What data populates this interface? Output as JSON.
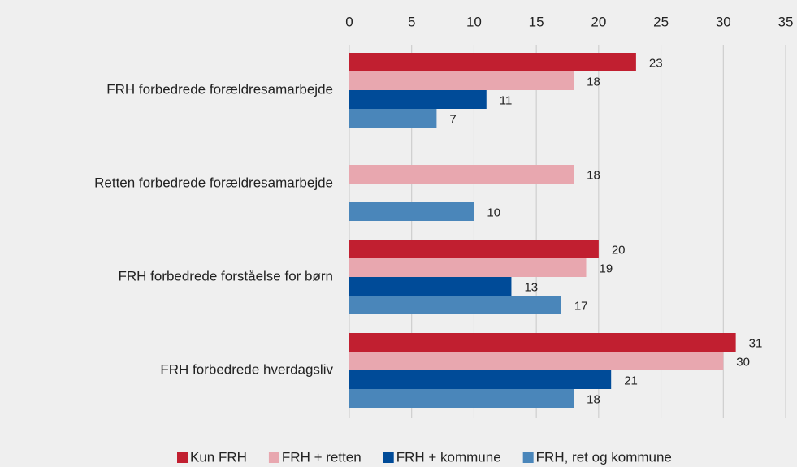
{
  "chart_data": {
    "type": "barh",
    "categories": [
      "FRH  forbedrede forældresamarbejde",
      "Retten forbedrede forældresamarbejde",
      "FRH forbedrede forståelse for børn",
      "FRH forbedrede hverdagsliv"
    ],
    "series": [
      {
        "name": "Kun FRH",
        "color": "#c11f30",
        "values": [
          23,
          null,
          20,
          31
        ]
      },
      {
        "name": "FRH + retten",
        "color": "#e8a7af",
        "values": [
          18,
          18,
          19,
          30
        ]
      },
      {
        "name": "FRH + kommune",
        "color": "#004b98",
        "values": [
          11,
          null,
          13,
          21
        ]
      },
      {
        "name": "FRH, ret og kommune",
        "color": "#4a86ba",
        "values": [
          7,
          10,
          17,
          18
        ]
      }
    ],
    "xlim": [
      0,
      35
    ],
    "xticks": [
      0,
      5,
      10,
      15,
      20,
      25,
      30,
      35
    ],
    "grid": true,
    "legend": "bottom"
  }
}
